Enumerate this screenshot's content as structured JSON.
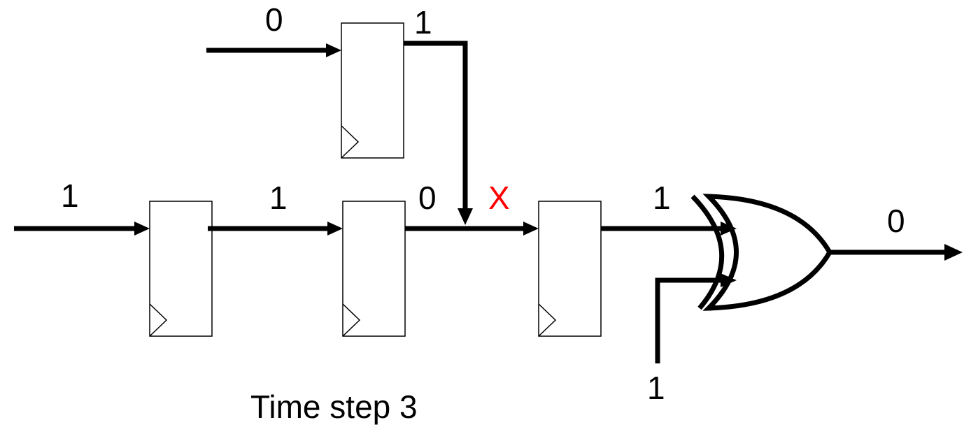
{
  "colors": {
    "wire": "#000000",
    "error_mark": "#ff0000",
    "background": "#ffffff"
  },
  "signals": {
    "top_ff_input": "0",
    "top_ff_output": "1",
    "chain_input": "1",
    "ff1_output": "1",
    "ff2_output": "0",
    "fault_mark": "X",
    "ff3_output": "1",
    "xor_lower_input": "1",
    "xor_output": "0"
  },
  "caption": "Time step 3",
  "components": [
    {
      "id": "ff-top",
      "type": "d-flip-flop"
    },
    {
      "id": "ff-1",
      "type": "d-flip-flop"
    },
    {
      "id": "ff-2",
      "type": "d-flip-flop"
    },
    {
      "id": "ff-3",
      "type": "d-flip-flop"
    },
    {
      "id": "xor-gate",
      "type": "xor-gate"
    }
  ]
}
